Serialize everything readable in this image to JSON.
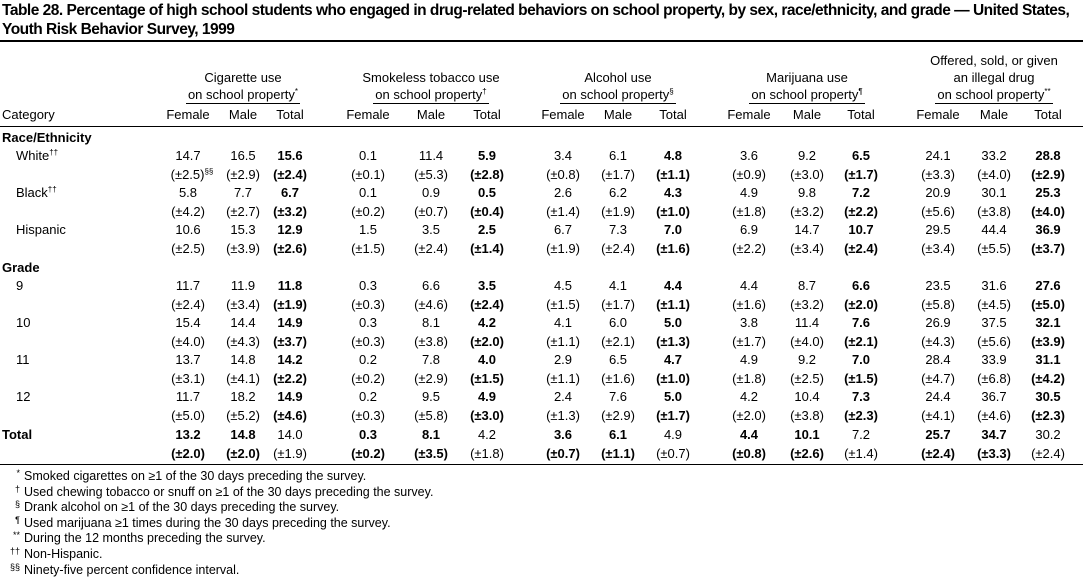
{
  "title": "Table 28. Percentage of high school students who engaged in drug-related behaviors on school property, by sex, race/ethnicity, and grade — United States, Youth Risk Behavior Survey, 1999",
  "category_header": "Category",
  "groups": [
    {
      "line1": "",
      "line2": "Cigarette use",
      "line3": "on school property",
      "sup": "*"
    },
    {
      "line1": "",
      "line2": "Smokeless tobacco use",
      "line3": "on school property",
      "sup": "†"
    },
    {
      "line1": "",
      "line2": "Alcohol use",
      "line3": "on school property",
      "sup": "§"
    },
    {
      "line1": "",
      "line2": "Marijuana use",
      "line3": "on school property",
      "sup": "¶"
    },
    {
      "line1": "Offered, sold, or given",
      "line2": "an illegal drug",
      "line3": "on school property",
      "sup": "**"
    }
  ],
  "subheaders": [
    "Female",
    "Male",
    "Total"
  ],
  "sections": [
    {
      "label": "Race/Ethnicity",
      "rows": [
        {
          "label": "White",
          "sup": "††",
          "values": [
            "14.7",
            "16.5",
            "15.6",
            "0.1",
            "11.4",
            "5.9",
            "3.4",
            "6.1",
            "4.8",
            "3.6",
            "9.2",
            "6.5",
            "24.1",
            "33.2",
            "28.8"
          ],
          "ci": [
            "(±2.5)",
            "(±2.9)",
            "(±2.4)",
            "(±0.1)",
            "(±5.3)",
            "(±2.8)",
            "(±0.8)",
            "(±1.7)",
            "(±1.1)",
            "(±0.9)",
            "(±3.0)",
            "(±1.7)",
            "(±3.3)",
            "(±4.0)",
            "(±2.9)"
          ],
          "ci_first_sup": "§§"
        },
        {
          "label": "Black",
          "sup": "††",
          "values": [
            "5.8",
            "7.7",
            "6.7",
            "0.1",
            "0.9",
            "0.5",
            "2.6",
            "6.2",
            "4.3",
            "4.9",
            "9.8",
            "7.2",
            "20.9",
            "30.1",
            "25.3"
          ],
          "ci": [
            "(±4.2)",
            "(±2.7)",
            "(±3.2)",
            "(±0.2)",
            "(±0.7)",
            "(±0.4)",
            "(±1.4)",
            "(±1.9)",
            "(±1.0)",
            "(±1.8)",
            "(±3.2)",
            "(±2.2)",
            "(±5.6)",
            "(±3.8)",
            "(±4.0)"
          ]
        },
        {
          "label": "Hispanic",
          "sup": "",
          "values": [
            "10.6",
            "15.3",
            "12.9",
            "1.5",
            "3.5",
            "2.5",
            "6.7",
            "7.3",
            "7.0",
            "6.9",
            "14.7",
            "10.7",
            "29.5",
            "44.4",
            "36.9"
          ],
          "ci": [
            "(±2.5)",
            "(±3.9)",
            "(±2.6)",
            "(±1.5)",
            "(±2.4)",
            "(±1.4)",
            "(±1.9)",
            "(±2.4)",
            "(±1.6)",
            "(±2.2)",
            "(±3.4)",
            "(±2.4)",
            "(±3.4)",
            "(±5.5)",
            "(±3.7)"
          ]
        }
      ]
    },
    {
      "label": "Grade",
      "rows": [
        {
          "label": "9",
          "sup": "",
          "values": [
            "11.7",
            "11.9",
            "11.8",
            "0.3",
            "6.6",
            "3.5",
            "4.5",
            "4.1",
            "4.4",
            "4.4",
            "8.7",
            "6.6",
            "23.5",
            "31.6",
            "27.6"
          ],
          "ci": [
            "(±2.4)",
            "(±3.4)",
            "(±1.9)",
            "(±0.3)",
            "(±4.6)",
            "(±2.4)",
            "(±1.5)",
            "(±1.7)",
            "(±1.1)",
            "(±1.6)",
            "(±3.2)",
            "(±2.0)",
            "(±5.8)",
            "(±4.5)",
            "(±5.0)"
          ]
        },
        {
          "label": "10",
          "sup": "",
          "values": [
            "15.4",
            "14.4",
            "14.9",
            "0.3",
            "8.1",
            "4.2",
            "4.1",
            "6.0",
            "5.0",
            "3.8",
            "11.4",
            "7.6",
            "26.9",
            "37.5",
            "32.1"
          ],
          "ci": [
            "(±4.0)",
            "(±4.3)",
            "(±3.7)",
            "(±0.3)",
            "(±3.8)",
            "(±2.0)",
            "(±1.1)",
            "(±2.1)",
            "(±1.3)",
            "(±1.7)",
            "(±4.0)",
            "(±2.1)",
            "(±4.3)",
            "(±5.6)",
            "(±3.9)"
          ]
        },
        {
          "label": "11",
          "sup": "",
          "values": [
            "13.7",
            "14.8",
            "14.2",
            "0.2",
            "7.8",
            "4.0",
            "2.9",
            "6.5",
            "4.7",
            "4.9",
            "9.2",
            "7.0",
            "28.4",
            "33.9",
            "31.1"
          ],
          "ci": [
            "(±3.1)",
            "(±4.1)",
            "(±2.2)",
            "(±0.2)",
            "(±2.9)",
            "(±1.5)",
            "(±1.1)",
            "(±1.6)",
            "(±1.0)",
            "(±1.8)",
            "(±2.5)",
            "(±1.5)",
            "(±4.7)",
            "(±6.8)",
            "(±4.2)"
          ]
        },
        {
          "label": "12",
          "sup": "",
          "values": [
            "11.7",
            "18.2",
            "14.9",
            "0.2",
            "9.5",
            "4.9",
            "2.4",
            "7.6",
            "5.0",
            "4.2",
            "10.4",
            "7.3",
            "24.4",
            "36.7",
            "30.5"
          ],
          "ci": [
            "(±5.0)",
            "(±5.2)",
            "(±4.6)",
            "(±0.3)",
            "(±5.8)",
            "(±3.0)",
            "(±1.3)",
            "(±2.9)",
            "(±1.7)",
            "(±2.0)",
            "(±3.8)",
            "(±2.3)",
            "(±4.1)",
            "(±4.6)",
            "(±2.3)"
          ]
        }
      ]
    }
  ],
  "total": {
    "label": "Total",
    "values": [
      "13.2",
      "14.8",
      "14.0",
      "0.3",
      "8.1",
      "4.2",
      "3.6",
      "6.1",
      "4.9",
      "4.4",
      "10.1",
      "7.2",
      "25.7",
      "34.7",
      "30.2"
    ],
    "ci": [
      "(±2.0)",
      "(±2.0)",
      "(±1.9)",
      "(±0.2)",
      "(±3.5)",
      "(±1.8)",
      "(±0.7)",
      "(±1.1)",
      "(±0.7)",
      "(±0.8)",
      "(±2.6)",
      "(±1.4)",
      "(±2.4)",
      "(±3.3)",
      "(±2.4)"
    ]
  },
  "footnotes": [
    {
      "sym": "*",
      "text": "Smoked cigarettes on ≥1 of the 30 days preceding the survey."
    },
    {
      "sym": "†",
      "text": "Used chewing tobacco or snuff on ≥1 of the 30 days preceding the survey."
    },
    {
      "sym": "§",
      "text": "Drank alcohol on ≥1 of the 30 days preceding the survey."
    },
    {
      "sym": "¶",
      "text": "Used marijuana ≥1 times during the 30 days preceding the survey."
    },
    {
      "sym": "**",
      "text": "During the 12 months preceding the survey."
    },
    {
      "sym": "††",
      "text": "Non-Hispanic."
    },
    {
      "sym": "§§",
      "text": "Ninety-five percent confidence interval."
    }
  ]
}
